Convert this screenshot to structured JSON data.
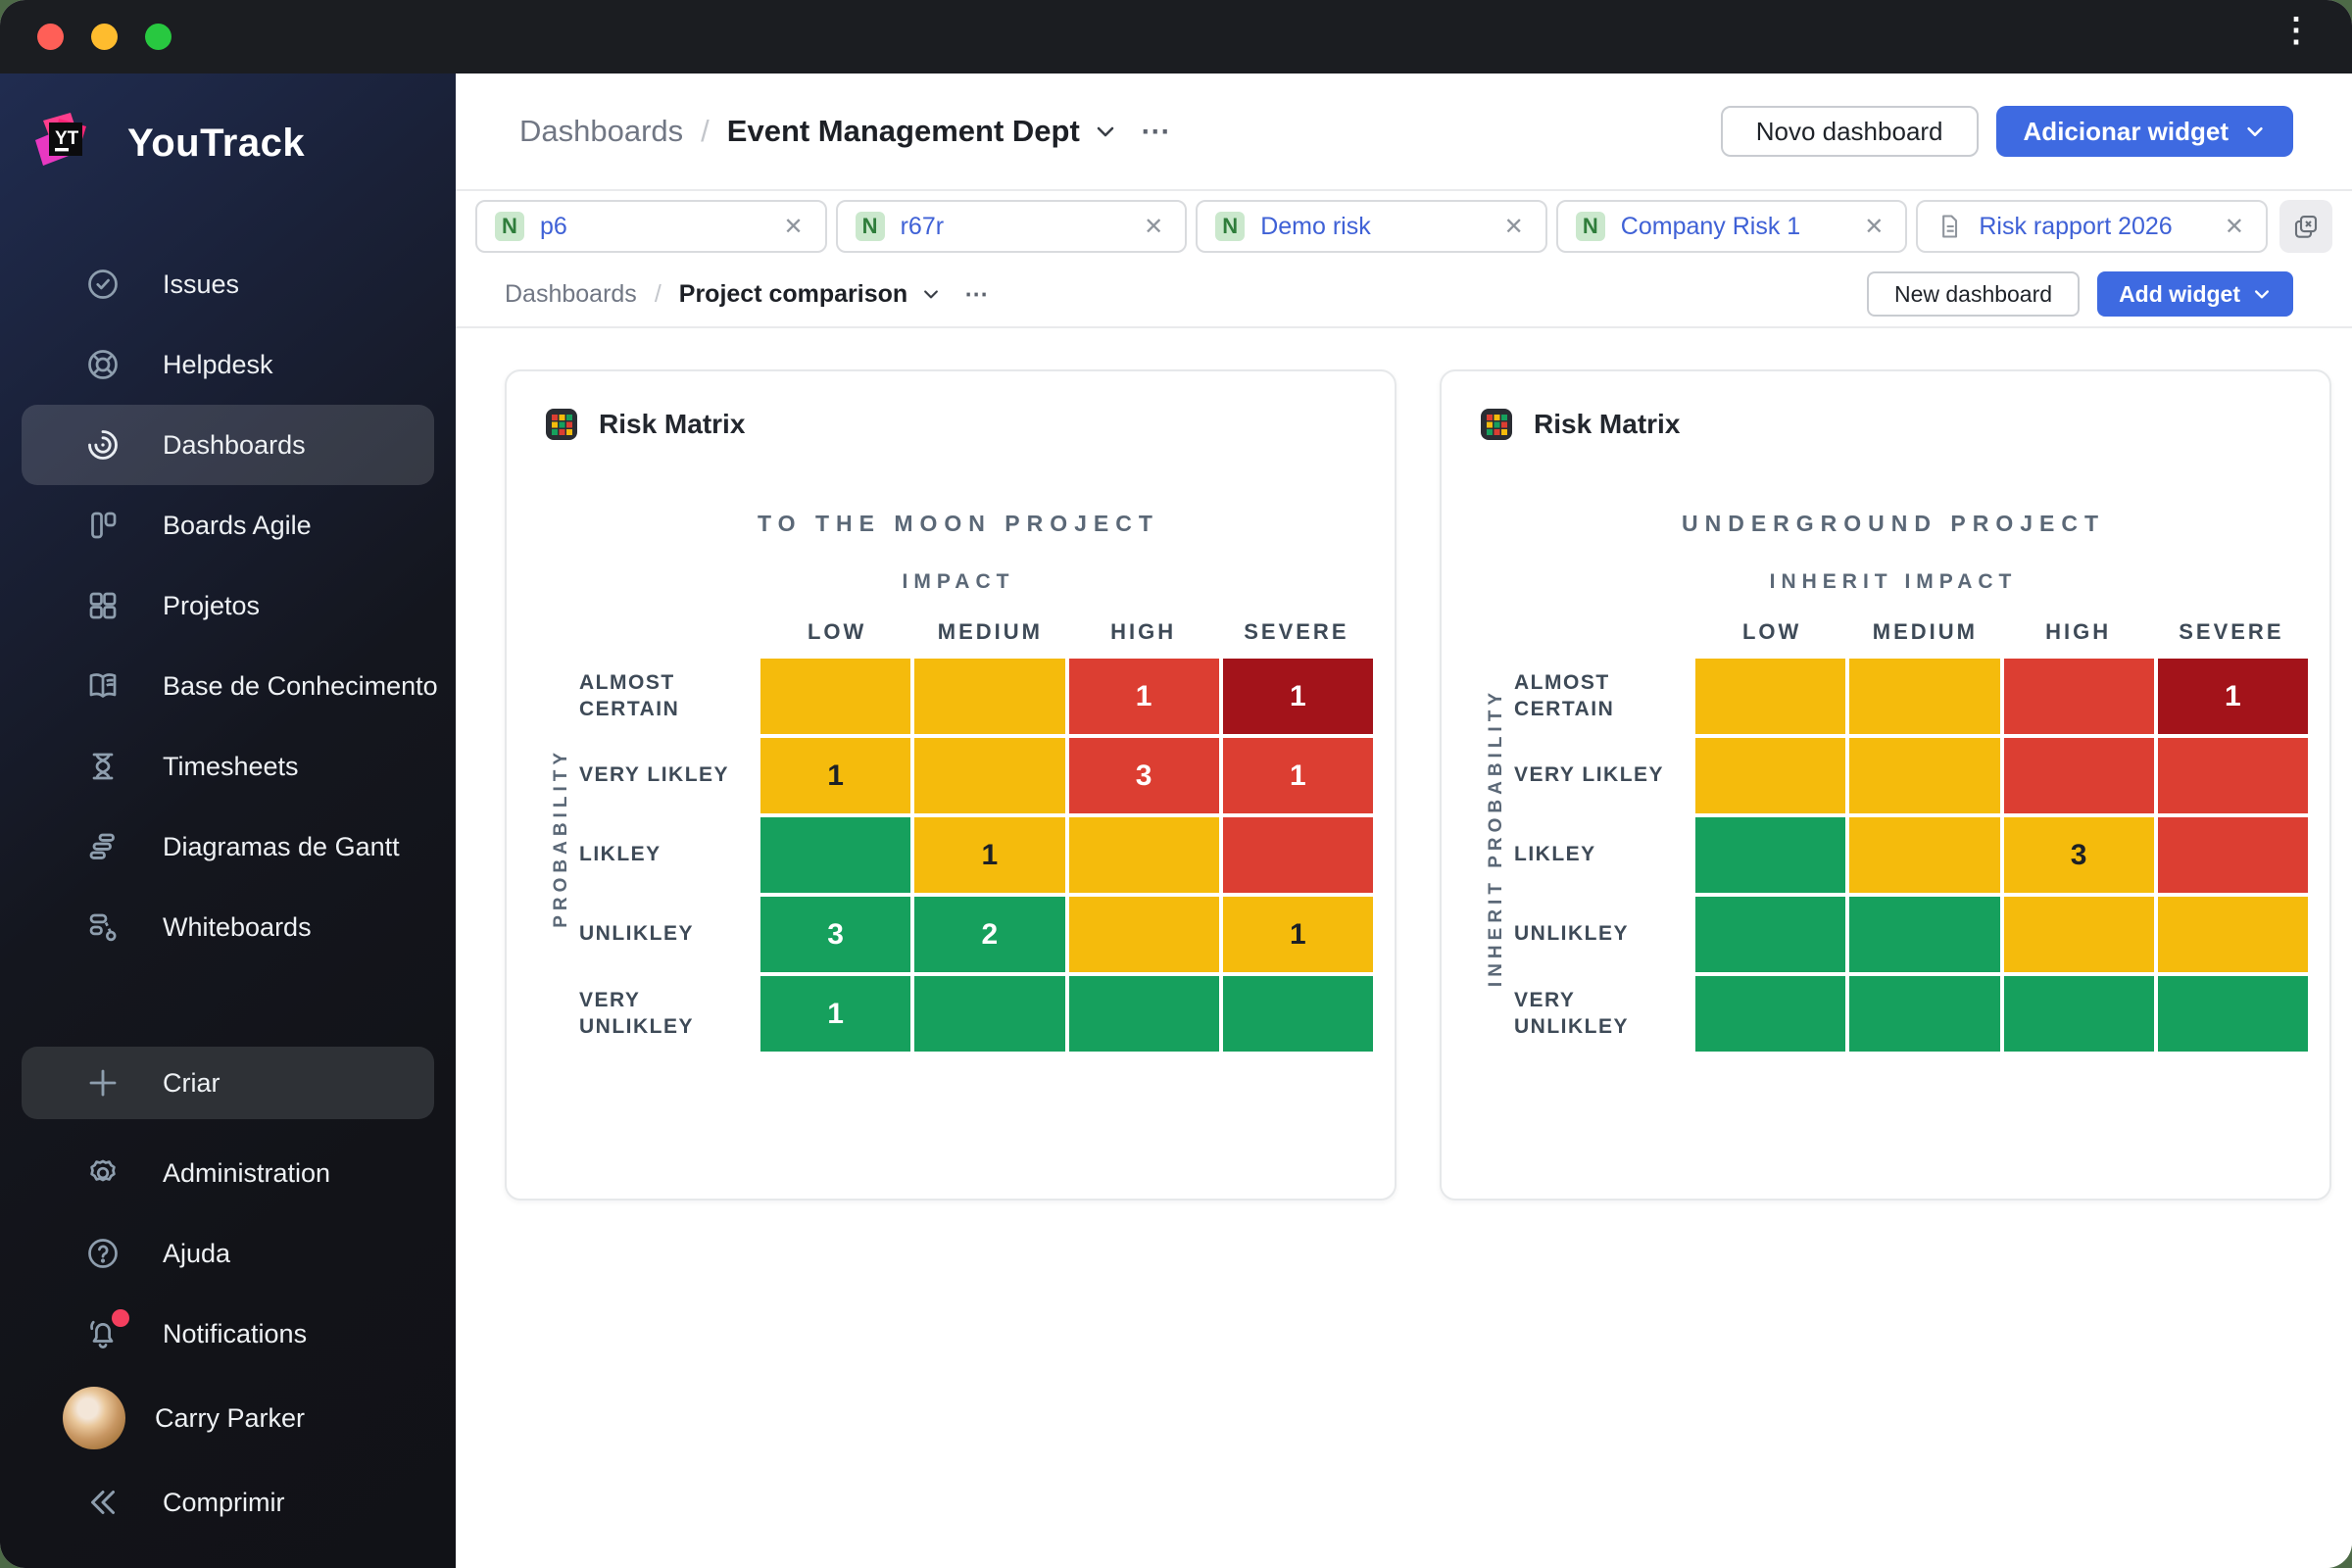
{
  "window": {
    "kebab": "⋮"
  },
  "sidebar": {
    "brand": "YouTrack",
    "items": [
      {
        "label": "Issues",
        "icon": "issues",
        "selected": false
      },
      {
        "label": "Helpdesk",
        "icon": "helpdesk",
        "selected": false
      },
      {
        "label": "Dashboards",
        "icon": "dashboards",
        "selected": true
      },
      {
        "label": "Boards Agile",
        "icon": "boards",
        "selected": false
      },
      {
        "label": "Projetos",
        "icon": "projects",
        "selected": false
      },
      {
        "label": "Base de Conhecimento",
        "icon": "knowledge-base",
        "selected": false
      },
      {
        "label": "Timesheets",
        "icon": "timesheets",
        "selected": false
      },
      {
        "label": "Diagramas de Gantt",
        "icon": "gantt",
        "selected": false
      },
      {
        "label": "Whiteboards",
        "icon": "whiteboards",
        "selected": false
      }
    ],
    "footer_items": [
      {
        "label": "Criar",
        "icon": "plus",
        "pill": true
      },
      {
        "label": "Administration",
        "icon": "gear"
      },
      {
        "label": "Ajuda",
        "icon": "question"
      },
      {
        "label": "Notifications",
        "icon": "bell",
        "dot": true
      },
      {
        "label": "Carry Parker",
        "icon": "avatar"
      },
      {
        "label": "Comprimir",
        "icon": "collapse"
      }
    ]
  },
  "header": {
    "breadcrumb_root": "Dashboards",
    "separator": "/",
    "title": "Event Management Dept",
    "more": "⋯",
    "new_dashboard_label": "Novo dashboard",
    "add_widget_label": "Adicionar widget"
  },
  "tabs": [
    {
      "badge": "N",
      "label": "p6",
      "close": "✕"
    },
    {
      "badge": "N",
      "label": "r67r",
      "close": "✕"
    },
    {
      "badge": "N",
      "label": "Demo risk",
      "close": "✕"
    },
    {
      "badge": "N",
      "label": "Company Risk 1",
      "close": "✕"
    },
    {
      "badge": "",
      "doc_icon": true,
      "label": "Risk rapport 2026",
      "close": "✕"
    }
  ],
  "subheader": {
    "breadcrumb_root": "Dashboards",
    "separator": "/",
    "title": "Project comparison",
    "more": "⋯",
    "new_dashboard_label": "New dashboard",
    "add_widget_label": "Add widget"
  },
  "colors": {
    "accent_blue": "#3e6ae1",
    "tab_label_blue": "#3f61d6",
    "badge_green_bg": "#cbe8cd",
    "badge_green_text": "#2f7d3b",
    "matrix_yellow": "#f5bb0c",
    "matrix_red": "#dc3e32",
    "matrix_darkred": "#a3131a",
    "matrix_green": "#16a05d",
    "notification_dot": "#f43f5e"
  },
  "chart_data": [
    {
      "type": "heatmap",
      "widget_title": "Risk Matrix",
      "title": "TO THE MOON PROJECT",
      "xlabel": "IMPACT",
      "ylabel": "PROBABILITY",
      "columns": [
        "LOW",
        "MEDIUM",
        "HIGH",
        "SEVERE"
      ],
      "rows": [
        "ALMOST CERTAIN",
        "VERY LIKLEY",
        "LIKLEY",
        "UNLIKLEY",
        "VERY UNLIKLEY"
      ],
      "cells": [
        [
          {
            "color": "yellow",
            "value": ""
          },
          {
            "color": "yellow",
            "value": ""
          },
          {
            "color": "red",
            "value": "1"
          },
          {
            "color": "darkred",
            "value": "1"
          }
        ],
        [
          {
            "color": "yellow",
            "value": "1"
          },
          {
            "color": "yellow",
            "value": ""
          },
          {
            "color": "red",
            "value": "3"
          },
          {
            "color": "red",
            "value": "1"
          }
        ],
        [
          {
            "color": "green",
            "value": ""
          },
          {
            "color": "yellow",
            "value": "1"
          },
          {
            "color": "yellow",
            "value": ""
          },
          {
            "color": "red",
            "value": ""
          }
        ],
        [
          {
            "color": "green",
            "value": "3"
          },
          {
            "color": "green",
            "value": "2"
          },
          {
            "color": "yellow",
            "value": ""
          },
          {
            "color": "yellow",
            "value": "1"
          }
        ],
        [
          {
            "color": "green",
            "value": "1"
          },
          {
            "color": "green",
            "value": ""
          },
          {
            "color": "green",
            "value": ""
          },
          {
            "color": "green",
            "value": ""
          }
        ]
      ]
    },
    {
      "type": "heatmap",
      "widget_title": "Risk Matrix",
      "title": "UNDERGROUND PROJECT",
      "xlabel": "INHERIT IMPACT",
      "ylabel": "INHERIT PROBABILITY",
      "columns": [
        "LOW",
        "MEDIUM",
        "HIGH",
        "SEVERE"
      ],
      "rows": [
        "ALMOST CERTAIN",
        "VERY LIKLEY",
        "LIKLEY",
        "UNLIKLEY",
        "VERY UNLIKLEY"
      ],
      "cells": [
        [
          {
            "color": "yellow",
            "value": ""
          },
          {
            "color": "yellow",
            "value": ""
          },
          {
            "color": "red",
            "value": ""
          },
          {
            "color": "darkred",
            "value": "1"
          }
        ],
        [
          {
            "color": "yellow",
            "value": ""
          },
          {
            "color": "yellow",
            "value": ""
          },
          {
            "color": "red",
            "value": ""
          },
          {
            "color": "red",
            "value": ""
          }
        ],
        [
          {
            "color": "green",
            "value": ""
          },
          {
            "color": "yellow",
            "value": ""
          },
          {
            "color": "yellow",
            "value": "3"
          },
          {
            "color": "red",
            "value": ""
          }
        ],
        [
          {
            "color": "green",
            "value": ""
          },
          {
            "color": "green",
            "value": ""
          },
          {
            "color": "yellow",
            "value": ""
          },
          {
            "color": "yellow",
            "value": ""
          }
        ],
        [
          {
            "color": "green",
            "value": ""
          },
          {
            "color": "green",
            "value": ""
          },
          {
            "color": "green",
            "value": ""
          },
          {
            "color": "green",
            "value": ""
          }
        ]
      ]
    }
  ]
}
